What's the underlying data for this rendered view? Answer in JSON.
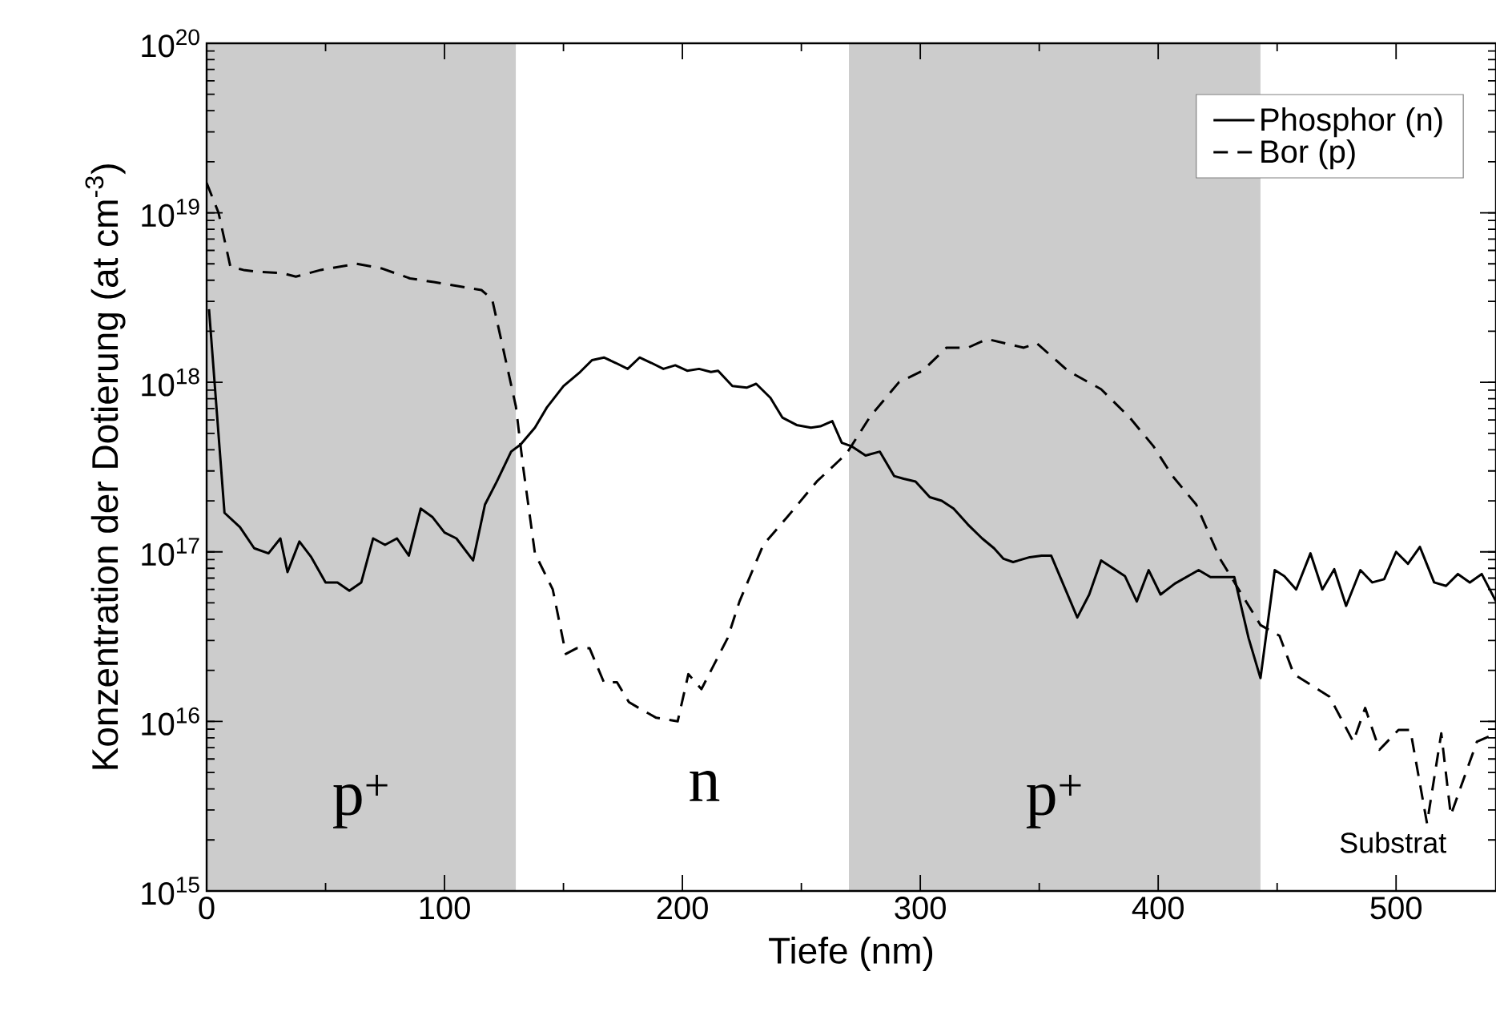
{
  "chart_data": {
    "type": "line",
    "xlabel": "Tiefe (nm)",
    "ylabel": "Konzentration der Dotierung (at cm$^{-3}$)",
    "log": "y",
    "xlim": [
      0,
      542
    ],
    "ylim": [
      1000000000000000.0,
      1e+20
    ],
    "xticks": [
      0,
      100,
      200,
      300,
      400,
      500
    ],
    "yticks": [
      {
        "value": 1000000000000000.0,
        "label": "10$^{15}$"
      },
      {
        "value": 1e+16,
        "label": "10$^{16}$"
      },
      {
        "value": 1e+17,
        "label": "10$^{17}$"
      },
      {
        "value": 1e+18,
        "label": "10$^{18}$"
      },
      {
        "value": 1e+19,
        "label": "10$^{19}$"
      },
      {
        "value": 1e+20,
        "label": "10$^{20}$"
      }
    ],
    "legend": "top right",
    "grid": false,
    "marker": "none",
    "bands": [
      {
        "axis": "x",
        "from": 0,
        "to": 130,
        "label": "p$^{+}$",
        "color": "#cccccc"
      },
      {
        "axis": "x",
        "from": 270,
        "to": 443,
        "label": "p$^{+}$",
        "color": "#cccccc"
      }
    ],
    "annotations": [
      "n",
      "Substrat"
    ],
    "series": [
      {
        "name": "Phosphor (n)",
        "color": "#000000",
        "line_style": "solid",
        "x": [
          1,
          7.5,
          14,
          20,
          26,
          31,
          34,
          39,
          44,
          50,
          55,
          60,
          65,
          70,
          75,
          80,
          85,
          90,
          95,
          100,
          105,
          112,
          117,
          122,
          128,
          132,
          138,
          143,
          150,
          157,
          162,
          167,
          172,
          177,
          182,
          187,
          192,
          197,
          202,
          207,
          212,
          215,
          221,
          227,
          231,
          237,
          242,
          248,
          254,
          258,
          263,
          267,
          271,
          277,
          283,
          289,
          293,
          298,
          304,
          309,
          314,
          320,
          326,
          331,
          335,
          339,
          346,
          351,
          355,
          366,
          371,
          376,
          386,
          391,
          396,
          401,
          407,
          417,
          422,
          432,
          438,
          443,
          449,
          453,
          458,
          464,
          469,
          474,
          479,
          485,
          490,
          495,
          500,
          505,
          510,
          516,
          521,
          526,
          531,
          536,
          542
        ],
        "values": [
          2.7e+18,
          1.7e+17,
          1.4e+17,
          1.05e+17,
          9.8e+16,
          1.2e+17,
          7.6e+16,
          1.15e+17,
          9.3e+16,
          6.6e+16,
          6.6e+16,
          5.9e+16,
          6.6e+16,
          1.2e+17,
          1.1e+17,
          1.2e+17,
          9.5e+16,
          1.8e+17,
          1.6e+17,
          1.3e+17,
          1.2e+17,
          8.9e+16,
          1.9e+17,
          2.6e+17,
          3.9e+17,
          4.3e+17,
          5.4e+17,
          7.1e+17,
          9.5e+17,
          1.15e+18,
          1.35e+18,
          1.4e+18,
          1.3e+18,
          1.2e+18,
          1.4e+18,
          1.3e+18,
          1.2e+18,
          1.26e+18,
          1.17e+18,
          1.2e+18,
          1.15e+18,
          1.17e+18,
          9.5e+17,
          9.3e+17,
          9.8e+17,
          8.1e+17,
          6.2e+17,
          5.6e+17,
          5.4e+17,
          5.5e+17,
          5.9e+17,
          4.4e+17,
          4.2e+17,
          3.7e+17,
          3.9e+17,
          2.8e+17,
          2.7e+17,
          2.6e+17,
          2.1e+17,
          2e+17,
          1.8e+17,
          1.45e+17,
          1.2e+17,
          1.05e+17,
          9.1e+16,
          8.7e+16,
          9.3e+16,
          9.5e+16,
          9.5e+16,
          4.1e+16,
          5.6e+16,
          8.9e+16,
          7.2e+16,
          5.1e+16,
          7.8e+16,
          5.6e+16,
          6.5e+16,
          7.8e+16,
          7.1e+16,
          7.1e+16,
          3.1e+16,
          1.8e+16,
          7.8e+16,
          7.2e+16,
          6e+16,
          9.8e+16,
          6e+16,
          7.9e+16,
          4.8e+16,
          7.8e+16,
          6.6e+16,
          6.9e+16,
          1e+17,
          8.5e+16,
          1.07e+17,
          6.6e+16,
          6.3e+16,
          7.4e+16,
          6.6e+16,
          7.4e+16,
          5.1e+16
        ]
      },
      {
        "name": "Bor (p)",
        "color": "#000000",
        "line_style": "dashed",
        "x": [
          0,
          5,
          10,
          15.5,
          20.5,
          32,
          37.5,
          48,
          63,
          73.5,
          85.5,
          95.5,
          105.5,
          115.5,
          120,
          125,
          130,
          133,
          138,
          145.5,
          151,
          155.5,
          161,
          167,
          172.5,
          177.5,
          183,
          189,
          198,
          202.5,
          208,
          219,
          224,
          234,
          244,
          256.5,
          269,
          279,
          291,
          301,
          311,
          320,
          328,
          343.5,
          349,
          362,
          376,
          388,
          398,
          406,
          416,
          426,
          443,
          451,
          457,
          472,
          482,
          487,
          493,
          501,
          506,
          513,
          519,
          523,
          534,
          542
        ],
        "values": [
          1.5e+19,
          1e+19,
          4.8e+18,
          4.6e+18,
          4.5e+18,
          4.4e+18,
          4.2e+18,
          4.6e+18,
          5e+18,
          4.7e+18,
          4.1e+18,
          3.9e+18,
          3.7e+18,
          3.5e+18,
          3.1e+18,
          1.5e+18,
          7.2e+17,
          3.2e+17,
          9.8e+16,
          6e+16,
          2.5e+16,
          2.7e+16,
          2.7e+16,
          1.7e+16,
          1.7e+16,
          1.3e+16,
          1.17e+16,
          1.05e+16,
          1e+16,
          1.9e+16,
          1.55e+16,
          3.1e+16,
          5.1e+16,
          1.1e+17,
          1.6e+17,
          2.6e+17,
          3.8e+17,
          6.3e+17,
          1e+18,
          1.17e+18,
          1.6e+18,
          1.6e+18,
          1.8e+18,
          1.6e+18,
          1.7e+18,
          1.17e+18,
          9.1e+17,
          6.2e+17,
          4.2e+17,
          2.8e+17,
          1.9e+17,
          9.1e+16,
          3.7e+16,
          3.2e+16,
          1.9e+16,
          1.4e+16,
          7600000000000000.0,
          1.2e+16,
          6800000000000000.0,
          8900000000000000.0,
          8900000000000000.0,
          2500000000000000.0,
          8500000000000000.0,
          2800000000000000.0,
          7600000000000000.0,
          8500000000000000.0
        ]
      }
    ]
  }
}
